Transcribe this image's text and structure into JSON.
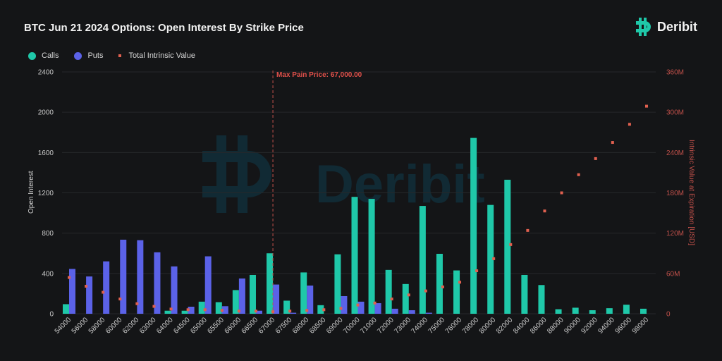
{
  "header": {
    "title": "BTC Jun 21 2024 Options: Open Interest By Strike Price",
    "brand": "Deribit",
    "brand_icon": "deribit-logo-icon"
  },
  "legend": [
    {
      "label": "Calls",
      "color": "#1fc8a9",
      "shape": "circle"
    },
    {
      "label": "Puts",
      "color": "#5b62e8",
      "shape": "circle"
    },
    {
      "label": "Total Intrinsic Value",
      "color": "#e0604f",
      "shape": "square"
    }
  ],
  "annotation": {
    "label": "Max Pain Price: 67,000.00",
    "strike": "67000",
    "color": "#e0504a"
  },
  "watermark": "Deribit",
  "chart_data": {
    "type": "bar",
    "title": "BTC Jun 21 2024 Options: Open Interest By Strike Price",
    "xlabel": "",
    "ylabel": "Open Interest",
    "y2label": "Intrinsic Value at Expiration [USD]",
    "ylim": [
      0,
      2400
    ],
    "y2lim": [
      0,
      360000000
    ],
    "yticks": [
      "0",
      "400",
      "800",
      "1200",
      "1600",
      "2000",
      "2400"
    ],
    "y2ticks": [
      "0",
      "60M",
      "120M",
      "180M",
      "240M",
      "300M",
      "360M"
    ],
    "grid": true,
    "legend_position": "top-left",
    "categories": [
      "54000",
      "56000",
      "58000",
      "60000",
      "62000",
      "63000",
      "64000",
      "64500",
      "65000",
      "65500",
      "66000",
      "66500",
      "67000",
      "67500",
      "68000",
      "68500",
      "69000",
      "70000",
      "71000",
      "72000",
      "73000",
      "74000",
      "75000",
      "76000",
      "78000",
      "80000",
      "82000",
      "84000",
      "86000",
      "88000",
      "90000",
      "92000",
      "94000",
      "96000",
      "98000"
    ],
    "series": [
      {
        "name": "Calls",
        "type": "bar",
        "color": "#1fc8a9",
        "values": [
          95,
          0,
          0,
          0,
          0,
          0,
          30,
          30,
          120,
          115,
          235,
          385,
          600,
          130,
          410,
          85,
          590,
          1160,
          1140,
          435,
          295,
          1070,
          595,
          430,
          1745,
          1080,
          1330,
          385,
          285,
          45,
          60,
          35,
          55,
          90,
          50
        ]
      },
      {
        "name": "Puts",
        "type": "bar",
        "color": "#5b62e8",
        "values": [
          445,
          370,
          520,
          735,
          730,
          610,
          470,
          70,
          570,
          75,
          350,
          30,
          290,
          10,
          280,
          0,
          175,
          120,
          105,
          50,
          35,
          10,
          0,
          0,
          0,
          0,
          0,
          0,
          0,
          0,
          0,
          0,
          0,
          0,
          0
        ]
      },
      {
        "name": "Total Intrinsic Value",
        "type": "scatter",
        "axis": "right",
        "color": "#e0604f",
        "values": [
          54000000,
          41000000,
          32000000,
          22000000,
          15000000,
          11000000,
          7000000,
          6000000,
          6000000,
          5000000,
          4000000,
          4000000,
          3000000,
          4000000,
          5000000,
          6000000,
          8000000,
          13000000,
          16000000,
          22000000,
          28000000,
          34000000,
          40000000,
          47000000,
          64000000,
          82000000,
          103000000,
          124000000,
          153000000,
          180000000,
          207000000,
          231000000,
          255000000,
          282000000,
          309000000
        ]
      }
    ]
  }
}
